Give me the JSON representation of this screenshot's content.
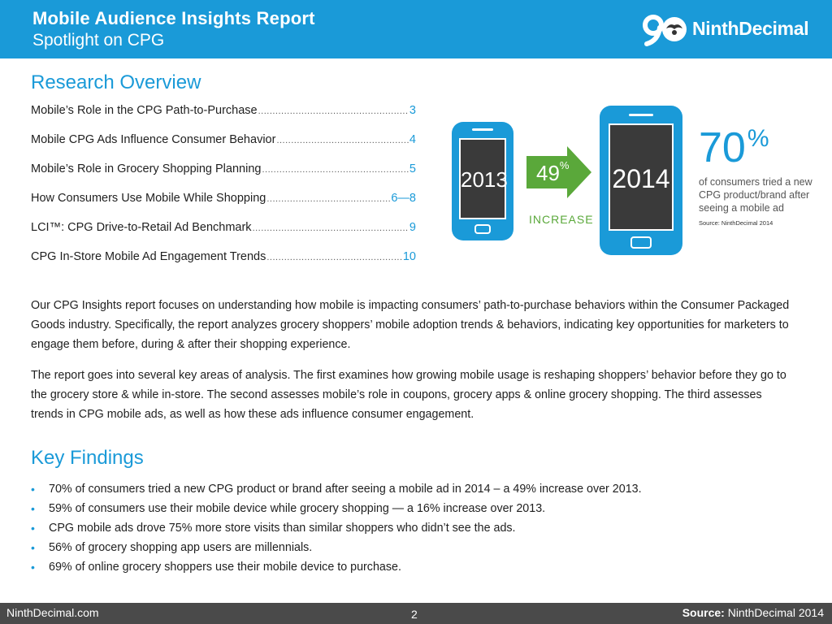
{
  "header": {
    "title": "Mobile Audience Insights Report",
    "subtitle": "Spotlight on CPG",
    "logo_text_a": "Ninth",
    "logo_text_b": "Decimal",
    "background_color": "#1a9ad8"
  },
  "overview": {
    "heading": "Research Overview",
    "toc": [
      {
        "label": "Mobile’s Role in the CPG Path-to-Purchase",
        "page": "3"
      },
      {
        "label": "Mobile CPG Ads Influence Consumer Behavior",
        "page": "4"
      },
      {
        "label": "Mobile’s Role in Grocery Shopping Planning",
        "page": "5"
      },
      {
        "label": "How Consumers Use Mobile While Shopping",
        "page": "6—8"
      },
      {
        "label": "LCI™: CPG Drive-to-Retail Ad Benchmark",
        "page": "9"
      },
      {
        "label": "CPG In-Store Mobile Ad Engagement Trends",
        "page": "10"
      }
    ]
  },
  "infographic": {
    "year_before": "2013",
    "year_after": "2014",
    "increase_value": "49",
    "increase_unit": "%",
    "increase_label": "INCREASE",
    "stat_value": "70",
    "stat_unit": "%",
    "stat_description": "of consumers tried a new CPG product/brand after seeing a mobile ad",
    "stat_source": "Source: NinthDecimal 2014",
    "phone_color": "#1a9ad8",
    "arrow_color": "#5aa83a"
  },
  "paragraphs": [
    "Our CPG Insights report focuses on understanding how mobile is impacting consumers’ path-to-purchase behaviors within the Consumer Packaged Goods industry. Specifically, the report analyzes grocery shoppers’ mobile adoption trends & behaviors, indicating key opportunities for marketers to engage them before, during & after their shopping experience.",
    "The report goes into several key areas of analysis. The first examines how growing mobile usage is reshaping shoppers’ behavior before they go to the grocery store & while in-store. The second assesses mobile’s role in coupons, grocery apps & online grocery shopping. The third assesses trends in CPG mobile ads, as well as how these ads influence consumer engagement."
  ],
  "findings": {
    "heading": "Key Findings",
    "bullet": "•",
    "items": [
      "70% of consumers tried a new CPG product or brand after seeing a mobile ad in 2014 – a 49% increase over 2013.",
      "59% of consumers use their mobile device while grocery shopping — a 16% increase over 2013.",
      "CPG mobile ads drove 75% more store visits than similar shoppers who didn’t see the ads.",
      "56% of grocery shopping app users are millennials.",
      "69% of online grocery shoppers use their mobile device to purchase."
    ]
  },
  "footer": {
    "site": "NinthDecimal.com",
    "page_number": "2",
    "source_label": "Source:",
    "source_value": "NinthDecimal 2014"
  }
}
